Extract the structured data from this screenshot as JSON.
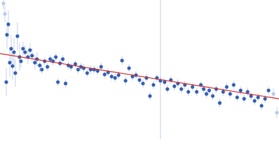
{
  "chart_data": {
    "type": "scatter",
    "xlim": [
      0,
      400
    ],
    "ylim": [
      0,
      200
    ],
    "series": [
      {
        "color": "#2f5fb3",
        "x": [
          9,
          10,
          12,
          14,
          16,
          18,
          20,
          22,
          25,
          28,
          30,
          33,
          36,
          40,
          43,
          46,
          50,
          53,
          57,
          60,
          64,
          68,
          72,
          76,
          80,
          83,
          86,
          90,
          94,
          98,
          102,
          108,
          112,
          116,
          120,
          125,
          130,
          135,
          140,
          145,
          150,
          155,
          160,
          165,
          170,
          175,
          180,
          185,
          190,
          195,
          200,
          205,
          210,
          215,
          220,
          225,
          230,
          236,
          240,
          245,
          250,
          255,
          260,
          265,
          270,
          276,
          282,
          288,
          292,
          296,
          300,
          305,
          310,
          315,
          320,
          325,
          330,
          335,
          340,
          345,
          350,
          355,
          360,
          365,
          370,
          375,
          380,
          385
        ],
        "values": [
          82,
          150,
          165,
          110,
          130,
          105,
          125,
          95,
          148,
          118,
          112,
          130,
          125,
          118,
          128,
          120,
          110,
          115,
          106,
          100,
          112,
          104,
          115,
          112,
          118,
          82,
          109,
          115,
          80,
          106,
          104,
          108,
          100,
          104,
          102,
          95,
          100,
          100,
          98,
          104,
          93,
          96,
          90,
          88,
          92,
          113,
          84,
          102,
          90,
          92,
          85,
          80,
          88,
          62,
          78,
          88,
          84,
          82,
          72,
          85,
          76,
          80,
          72,
          78,
          68,
          75,
          68,
          78,
          72,
          65,
          70,
          62,
          72,
          52,
          68,
          75,
          65,
          78,
          60,
          70,
          58,
          68,
          62,
          55,
          60,
          48,
          58,
          70
        ],
        "errors": [
          20,
          20,
          20,
          20,
          20,
          20,
          20,
          20,
          20,
          20,
          10,
          10,
          10,
          10,
          10,
          10,
          10,
          10,
          10,
          6,
          6,
          6,
          6,
          6,
          6,
          6,
          6,
          6,
          6,
          6,
          6,
          6,
          6,
          6,
          6,
          6,
          6,
          6,
          6,
          6,
          6,
          6,
          6,
          6,
          6,
          6,
          6,
          6,
          6,
          6,
          6,
          6,
          6,
          6,
          6,
          6,
          6,
          6,
          6,
          6,
          6,
          6,
          6,
          6,
          6,
          6,
          6,
          6,
          6,
          6,
          6,
          6,
          6,
          6,
          6,
          6,
          6,
          6,
          6,
          6,
          6,
          6,
          6,
          6,
          6,
          6,
          6,
          6
        ]
      },
      {
        "color": "#b9cbe6",
        "x": [
          5,
          7,
          392,
          397
        ],
        "values": [
          195,
          180,
          65,
          38
        ],
        "errors": [
          8,
          12,
          8,
          8
        ]
      }
    ],
    "fit": {
      "color": "#d62728",
      "x": [
        0,
        400
      ],
      "values": [
        123,
        58
      ]
    },
    "vline": {
      "color": "#c5d0e0",
      "x": 230
    }
  }
}
